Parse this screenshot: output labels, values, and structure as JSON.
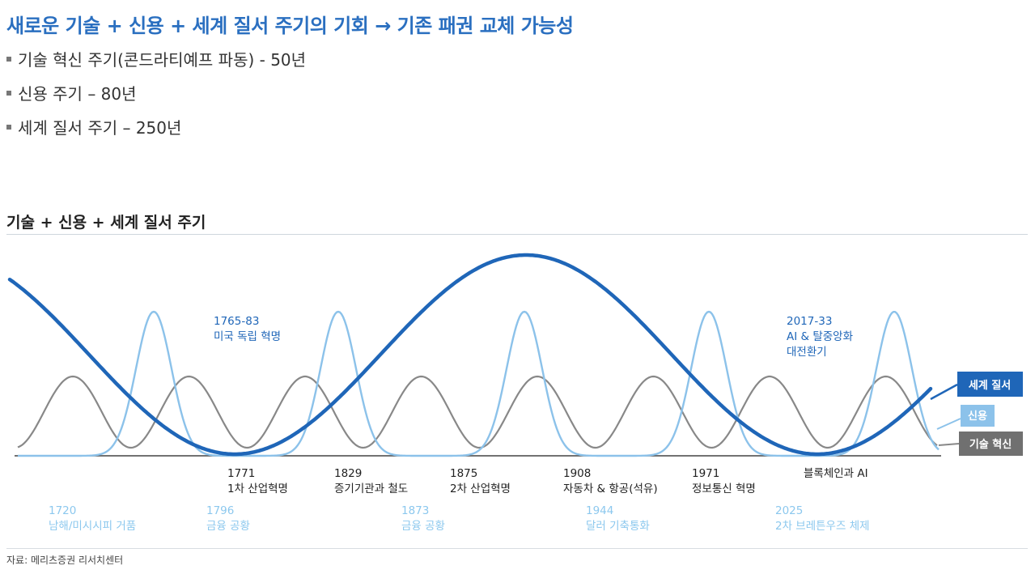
{
  "headline": "새로운 기술 + 신용 + 세계 질서 주기의 기회 → 기존 패권 교체 가능성",
  "bullets": [
    "기술 혁신 주기(콘드라티예프 파동) -  50년",
    "신용 주기 – 80년",
    "세계 질서 주기 – 250년"
  ],
  "source": "자료: 메리츠증권 리서치센터",
  "colors": {
    "world_order": "#1f66b8",
    "credit": "#8cc2ea",
    "technology": "#888888",
    "event_text": "#1f66b8",
    "crisis_text": "#8cc8ee",
    "headline": "#2a6fc0"
  },
  "chart_data": {
    "type": "line",
    "title": "기술 + 신용 + 세계 질서 주기",
    "series": [
      {
        "name": "세계 질서",
        "color": "#1f66b8"
      },
      {
        "name": "신용",
        "color": "#8cc2ea"
      },
      {
        "name": "기술 혁신",
        "color": "#888888"
      }
    ],
    "axis_labels": [
      {
        "year": "1771",
        "label": "1차 산업혁명"
      },
      {
        "year": "1829",
        "label": "증기기관과 철도"
      },
      {
        "year": "1875",
        "label": "2차 산업혁명"
      },
      {
        "year": "1908",
        "label": "자동차 & 항공(석유)"
      },
      {
        "year": "1971",
        "label": "정보통신 혁명"
      },
      {
        "year": "",
        "label": "블록체인과 AI"
      }
    ],
    "crises": [
      {
        "year": "1720",
        "label": "남해/미시시피 거품"
      },
      {
        "year": "1796",
        "label": "금융 공황"
      },
      {
        "year": "1873",
        "label": "금융 공황"
      },
      {
        "year": "1944",
        "label": "달러 기축통화"
      },
      {
        "year": "2025",
        "label": "2차 브레튼우즈 체제"
      }
    ],
    "annotations": [
      {
        "lines": [
          "1765-83",
          "미국 독립 혁명"
        ]
      },
      {
        "lines": [
          "2017-33",
          "AI & 탈중앙화",
          "대전환기"
        ]
      }
    ]
  }
}
